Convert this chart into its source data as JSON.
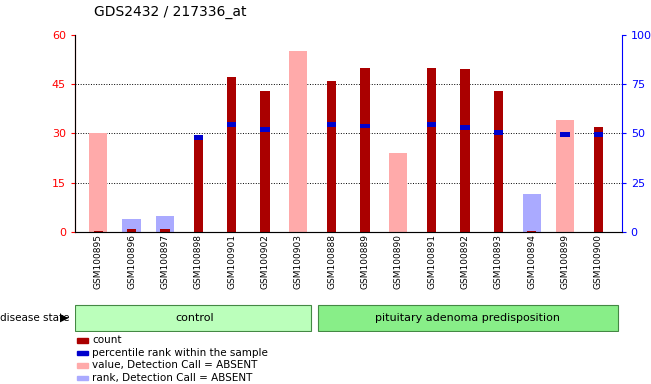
{
  "title": "GDS2432 / 217336_at",
  "samples": [
    "GSM100895",
    "GSM100896",
    "GSM100897",
    "GSM100898",
    "GSM100901",
    "GSM100902",
    "GSM100903",
    "GSM100888",
    "GSM100889",
    "GSM100890",
    "GSM100891",
    "GSM100892",
    "GSM100893",
    "GSM100894",
    "GSM100899",
    "GSM100900"
  ],
  "groups": [
    "control",
    "control",
    "control",
    "control",
    "control",
    "control",
    "control",
    "pituitary adenoma predisposition",
    "pituitary adenoma predisposition",
    "pituitary adenoma predisposition",
    "pituitary adenoma predisposition",
    "pituitary adenoma predisposition",
    "pituitary adenoma predisposition",
    "pituitary adenoma predisposition",
    "pituitary adenoma predisposition",
    "pituitary adenoma predisposition"
  ],
  "count_values": [
    0.3,
    1.0,
    1.0,
    28.5,
    47.0,
    43.0,
    0.0,
    46.0,
    50.0,
    0.0,
    50.0,
    49.5,
    43.0,
    0.5,
    0.0,
    32.0
  ],
  "percentile_values": [
    0.0,
    0.0,
    0.0,
    29.5,
    33.5,
    32.0,
    0.0,
    33.5,
    33.0,
    0.0,
    33.5,
    32.5,
    31.0,
    0.0,
    30.5,
    30.5
  ],
  "value_absent": [
    30.0,
    1.5,
    2.0,
    0.0,
    0.0,
    0.0,
    55.0,
    0.0,
    0.0,
    24.0,
    0.0,
    0.0,
    0.0,
    6.0,
    34.0,
    0.0
  ],
  "rank_absent": [
    0.0,
    4.0,
    5.0,
    0.0,
    0.0,
    0.0,
    0.0,
    0.0,
    0.0,
    0.0,
    0.0,
    0.0,
    0.0,
    11.5,
    0.0,
    0.0
  ],
  "ylim_left": [
    0,
    60
  ],
  "ylim_right": [
    0,
    100
  ],
  "yticks_left": [
    0,
    15,
    30,
    45,
    60
  ],
  "yticks_right": [
    0,
    25,
    50,
    75,
    100
  ],
  "color_count": "#aa0000",
  "color_percentile": "#0000cc",
  "color_value_absent": "#ffaaaa",
  "color_rank_absent": "#aaaaff",
  "ctrl_color": "#bbffbb",
  "pit_color": "#88ee88",
  "bar_width": 0.55,
  "thin_bar_width": 0.28,
  "legend_items": [
    {
      "label": "count",
      "color": "#aa0000"
    },
    {
      "label": "percentile rank within the sample",
      "color": "#0000cc"
    },
    {
      "label": "value, Detection Call = ABSENT",
      "color": "#ffaaaa"
    },
    {
      "label": "rank, Detection Call = ABSENT",
      "color": "#aaaaff"
    }
  ]
}
